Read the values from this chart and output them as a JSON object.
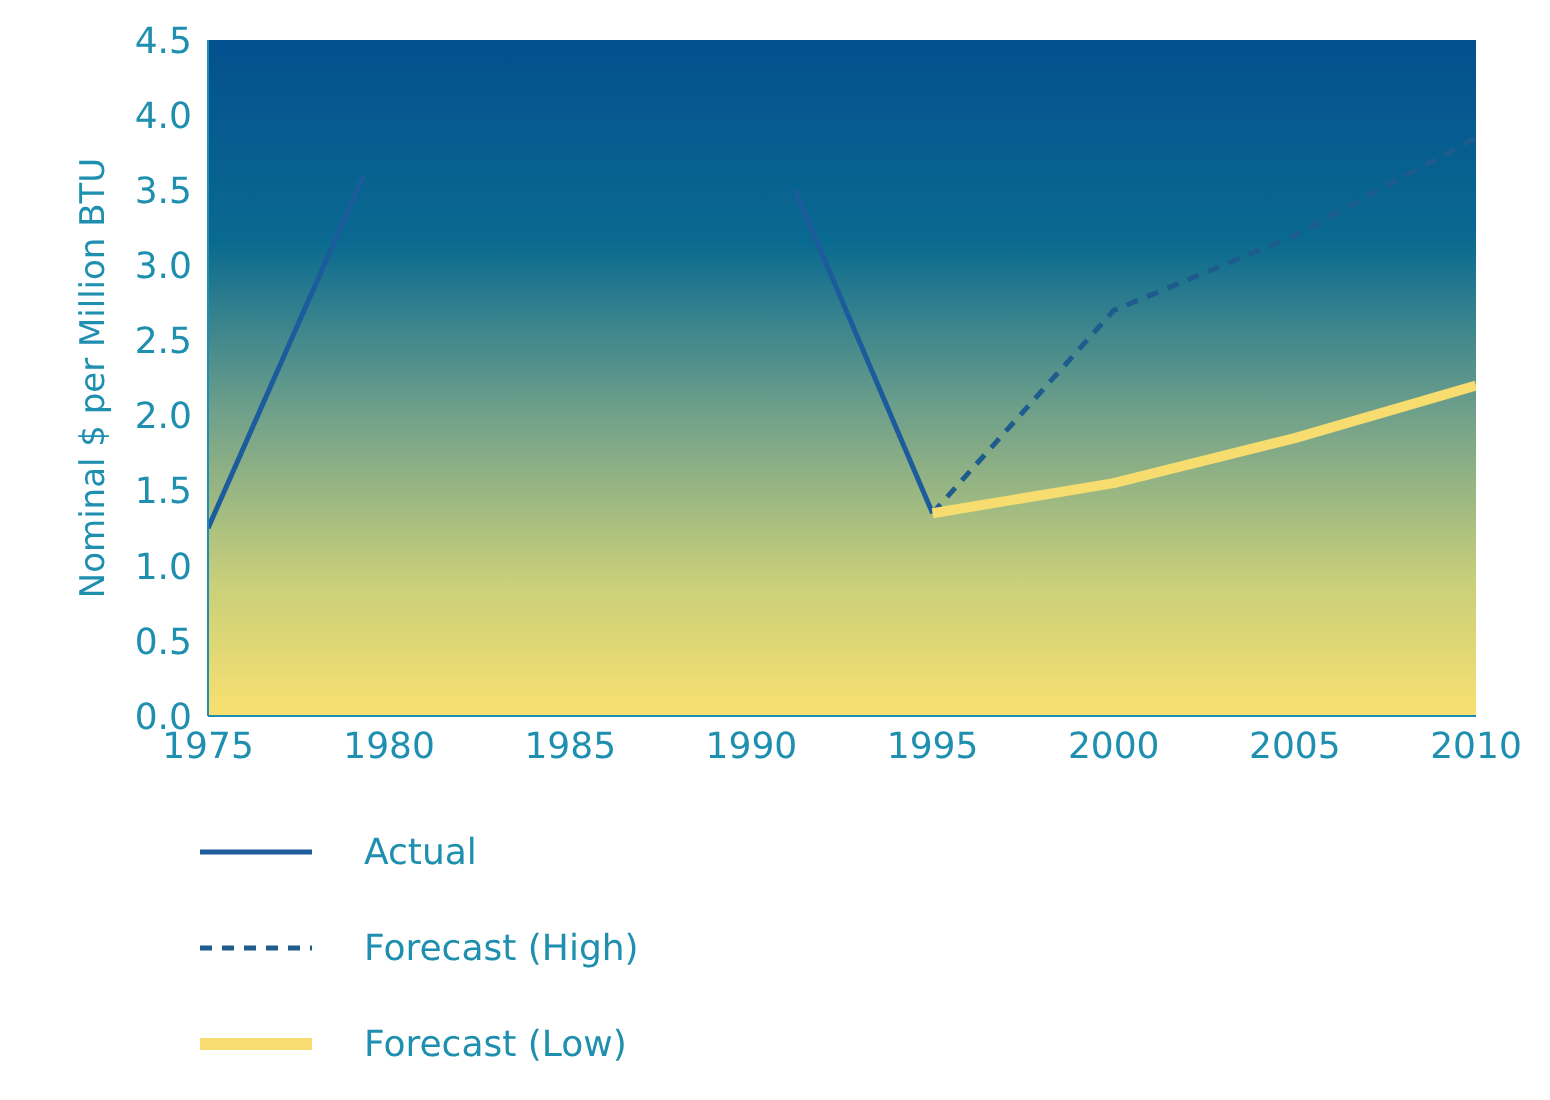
{
  "chart_data": {
    "type": "line",
    "ylabel": "Nominal $ per Million BTU",
    "xlim": [
      1975,
      2010
    ],
    "xticks": [
      1975,
      1980,
      1985,
      1990,
      1995,
      2000,
      2005,
      2010
    ],
    "ylim": [
      0,
      4.5
    ],
    "yticks": [
      {
        "value": 0,
        "label": "0.0"
      },
      {
        "value": 0.5,
        "label": "0.5"
      },
      {
        "value": 1,
        "label": "1.0"
      },
      {
        "value": 1.5,
        "label": "1.5"
      },
      {
        "value": 2,
        "label": "2.0"
      },
      {
        "value": 2.5,
        "label": "2.5"
      },
      {
        "value": 3,
        "label": "3.0"
      },
      {
        "value": 3.5,
        "label": "3.5"
      },
      {
        "value": 4,
        "label": "4.0"
      },
      {
        "value": 4.5,
        "label": "4.5"
      }
    ],
    "legend": "bottom",
    "marker": "none",
    "series": [
      {
        "name": "Actual",
        "color": "#1d5c9c",
        "line_style": "solid",
        "x": [
          1975,
          1979.3,
          1985,
          1991.2,
          1995
        ],
        "values": [
          1.25,
          3.6,
          null,
          3.5,
          1.35
        ]
      },
      {
        "name": "Forecast (High)",
        "color": "#1d5c8c",
        "line_style": "dashed",
        "x": [
          1995,
          2000,
          2005,
          2010
        ],
        "values": [
          1.35,
          2.7,
          3.2,
          3.85
        ]
      },
      {
        "name": "Forecast (Low)",
        "color": "#f7dc6f",
        "line_style": "solid",
        "x": [
          1995,
          2000,
          2005,
          2010
        ],
        "values": [
          1.35,
          1.55,
          1.85,
          2.2
        ]
      }
    ]
  }
}
